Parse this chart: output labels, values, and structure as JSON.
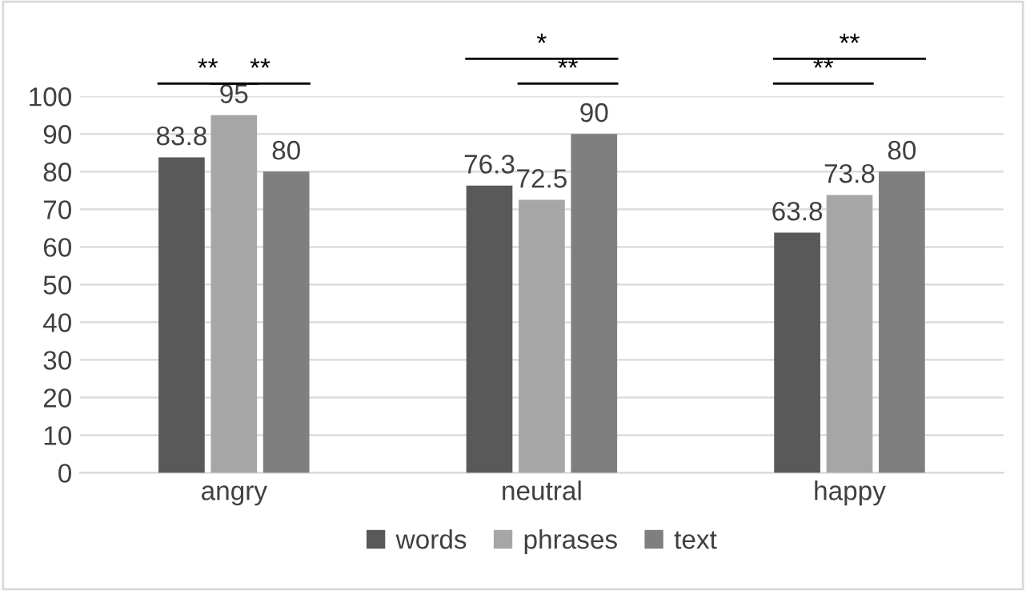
{
  "chart_data": {
    "type": "bar",
    "categories": [
      "angry",
      "neutral",
      "happy"
    ],
    "series": [
      {
        "name": "words",
        "color": "#595959",
        "values": [
          83.8,
          76.3,
          63.8
        ]
      },
      {
        "name": "phrases",
        "color": "#a6a6a6",
        "values": [
          95,
          72.5,
          73.8
        ]
      },
      {
        "name": "text",
        "color": "#7f7f7f",
        "values": [
          80,
          90,
          80
        ]
      }
    ],
    "ylim": [
      0,
      100
    ],
    "yticks": [
      0,
      10,
      20,
      30,
      40,
      50,
      60,
      70,
      80,
      90,
      100
    ],
    "grid": "y",
    "legend": "bottom",
    "data_labels": true,
    "annotations": [
      "**",
      "**",
      "*",
      "**",
      "**",
      "**"
    ]
  }
}
